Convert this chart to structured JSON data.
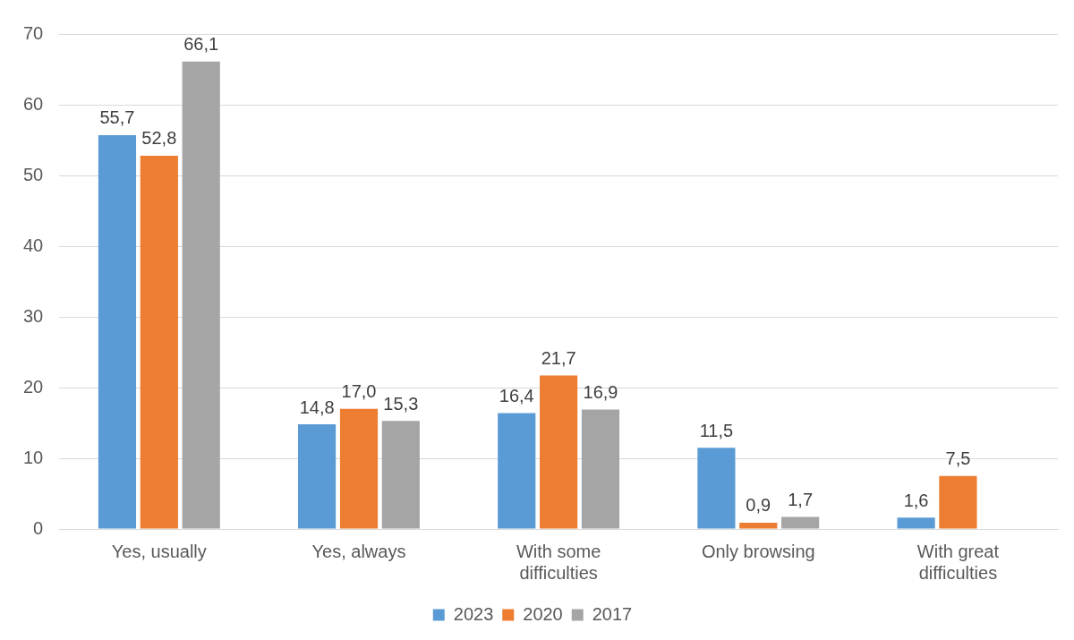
{
  "chart_data": {
    "type": "bar",
    "categories": [
      "Yes, usually",
      "Yes, always",
      "With some difficulties",
      "Only browsing",
      "With great difficulties"
    ],
    "series": [
      {
        "name": "2023",
        "color": "#5b9bd5",
        "values": [
          55.7,
          14.8,
          16.4,
          11.5,
          1.6
        ],
        "value_labels": [
          "55,7",
          "14,8",
          "16,4",
          "11,5",
          "1,6"
        ]
      },
      {
        "name": "2020",
        "color": "#ed7d31",
        "values": [
          52.8,
          17.0,
          21.7,
          0.9,
          7.5
        ],
        "value_labels": [
          "52,8",
          "17,0",
          "21,7",
          "0,9",
          "7,5"
        ]
      },
      {
        "name": "2017",
        "color": "#a5a5a5",
        "values": [
          66.1,
          15.3,
          16.9,
          1.7,
          null
        ],
        "value_labels": [
          "66,1",
          "15,3",
          "16,9",
          "1,7",
          null
        ]
      }
    ],
    "ylim": [
      0,
      70
    ],
    "yticks": [
      0,
      10,
      20,
      30,
      40,
      50,
      60,
      70
    ],
    "grid": "y",
    "legend": "bottom"
  }
}
